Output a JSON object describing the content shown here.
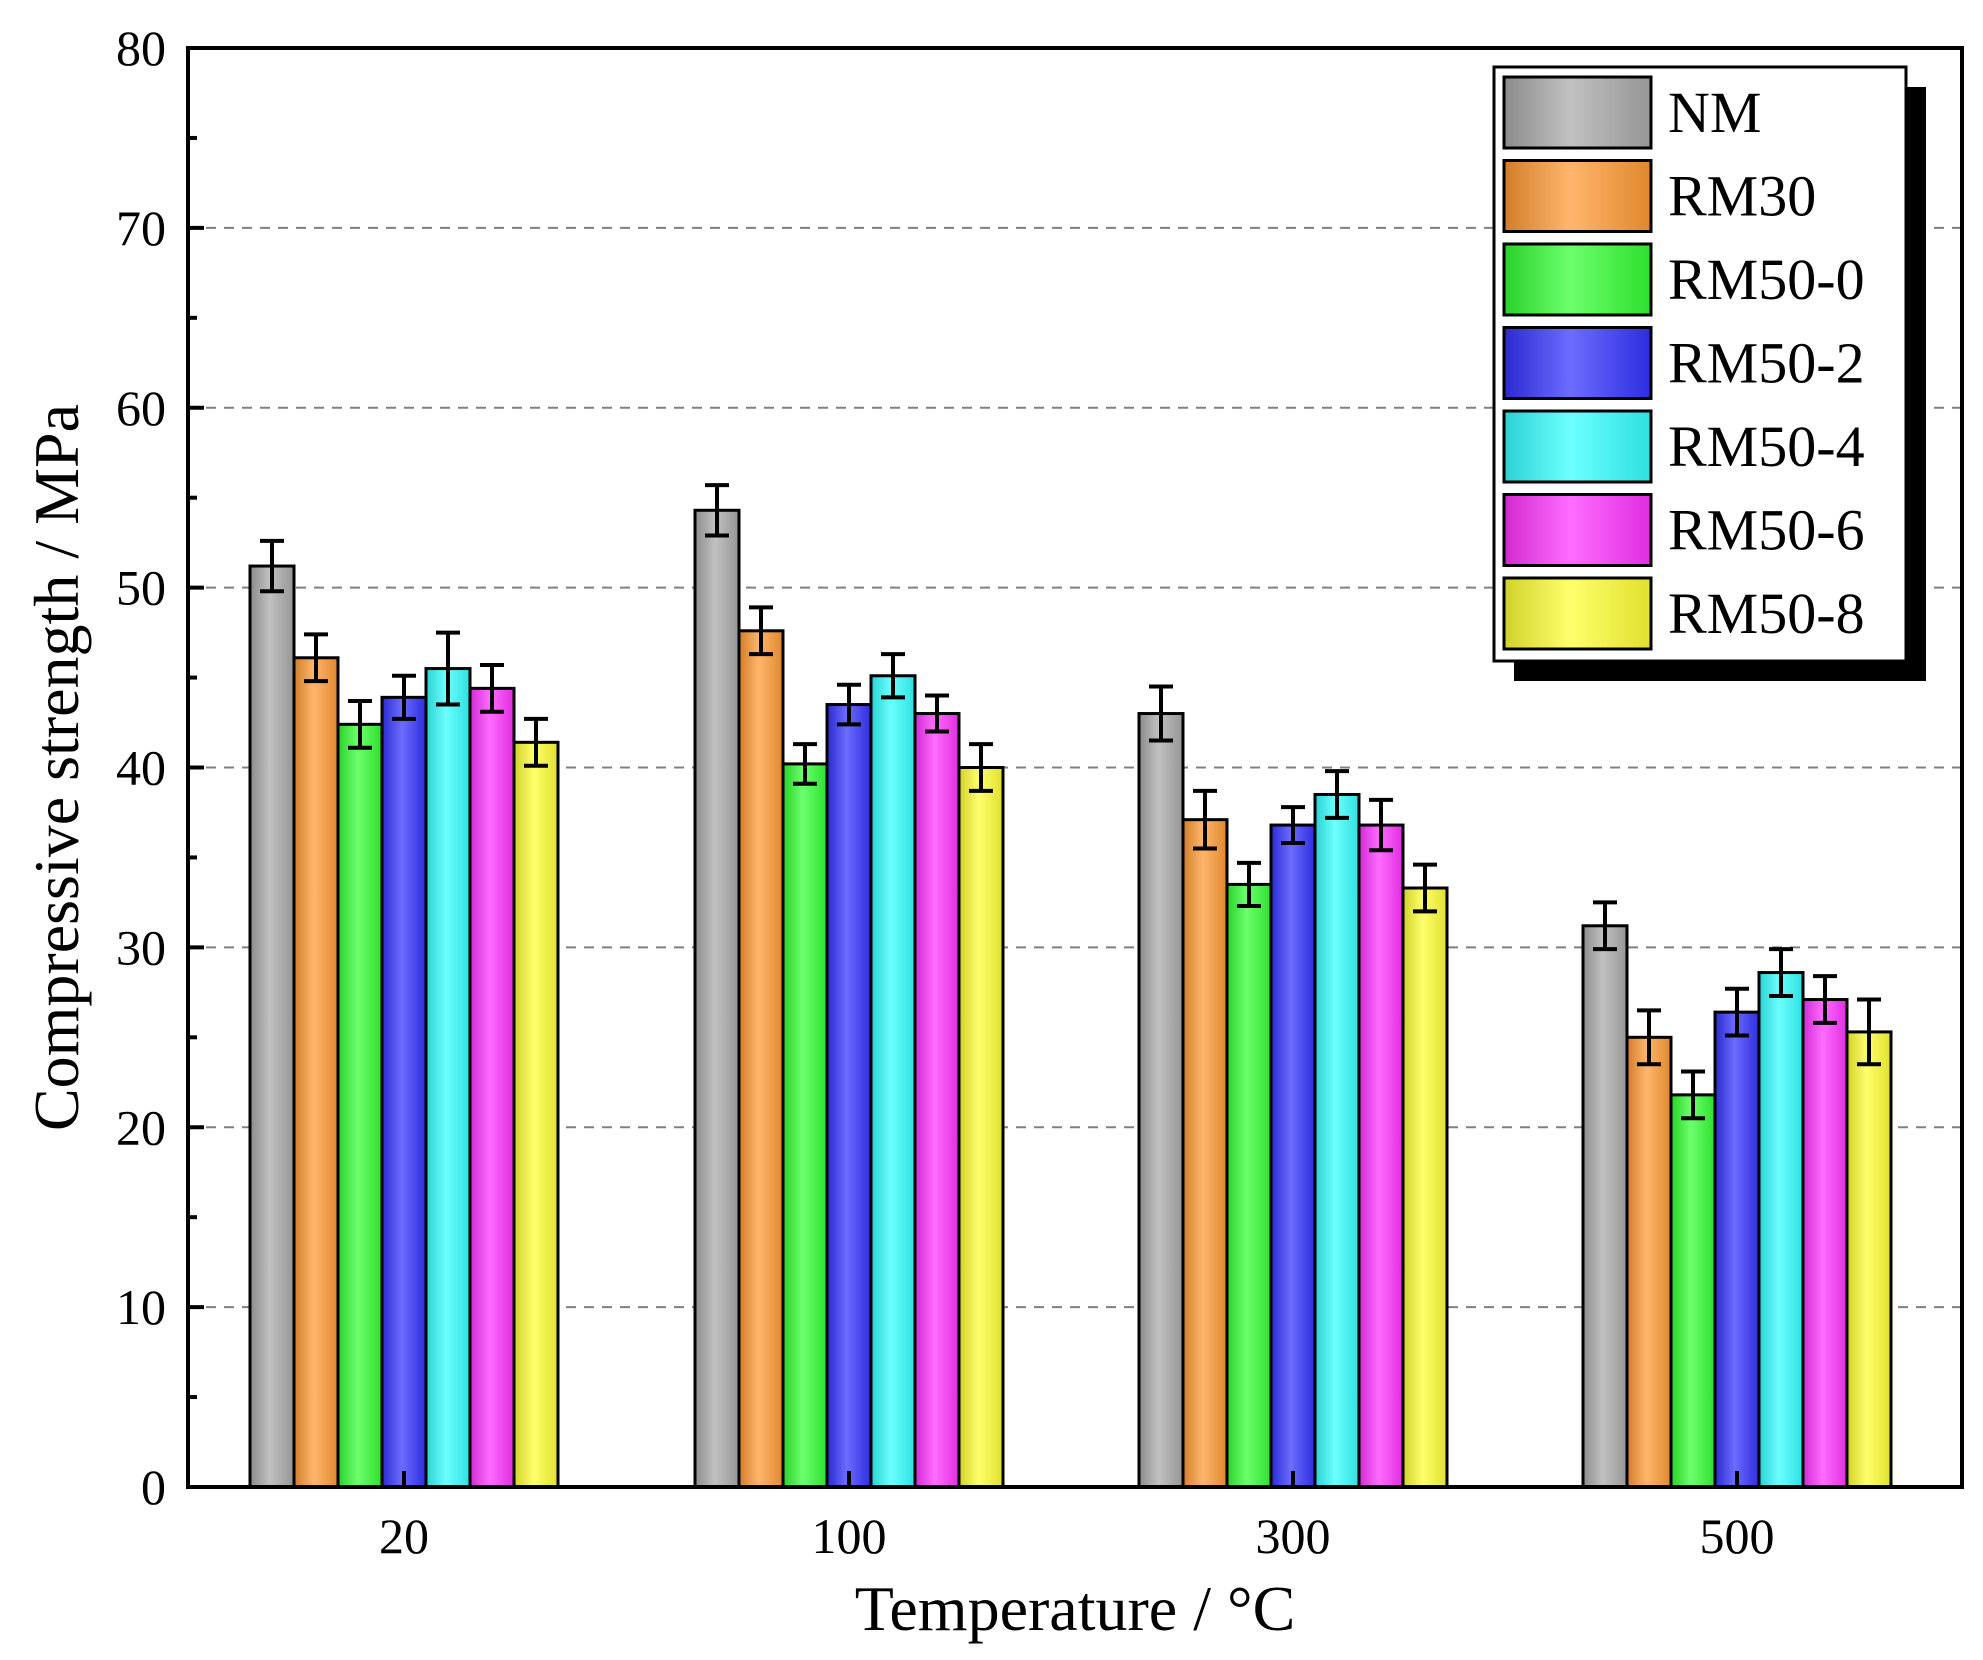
{
  "chart_data": {
    "type": "bar",
    "xlabel": "Temperature / °C",
    "ylabel": "Compressive strength / MPa",
    "ylim": [
      0,
      80
    ],
    "yticks": [
      0,
      10,
      20,
      30,
      40,
      50,
      60,
      70,
      80
    ],
    "categories": [
      "20",
      "100",
      "300",
      "500"
    ],
    "grid": "horizontal dashed",
    "legend_position": "top-right",
    "series": [
      {
        "name": "NM",
        "color": "#a9a9a9",
        "values": [
          51.2,
          54.3,
          43.0,
          31.2
        ],
        "errors": [
          1.4,
          1.4,
          1.5,
          1.3
        ]
      },
      {
        "name": "RM30",
        "color": "#ff9933",
        "values": [
          46.1,
          47.6,
          37.1,
          25.0
        ],
        "errors": [
          1.3,
          1.3,
          1.6,
          1.5
        ]
      },
      {
        "name": "RM50-0",
        "color": "#33ff33",
        "values": [
          42.4,
          40.2,
          33.5,
          21.8
        ],
        "errors": [
          1.3,
          1.1,
          1.2,
          1.3
        ]
      },
      {
        "name": "RM50-2",
        "color": "#3333ff",
        "values": [
          43.9,
          43.5,
          36.8,
          26.4
        ],
        "errors": [
          1.2,
          1.1,
          1.0,
          1.3
        ]
      },
      {
        "name": "RM50-4",
        "color": "#33ffff",
        "values": [
          45.5,
          45.1,
          38.5,
          28.6
        ],
        "errors": [
          2.0,
          1.2,
          1.3,
          1.3
        ]
      },
      {
        "name": "RM50-6",
        "color": "#ff33ff",
        "values": [
          44.4,
          43.0,
          36.8,
          27.1
        ],
        "errors": [
          1.3,
          1.0,
          1.4,
          1.3
        ]
      },
      {
        "name": "RM50-8",
        "color": "#ffff33",
        "values": [
          41.4,
          40.0,
          33.3,
          25.3
        ],
        "errors": [
          1.3,
          1.3,
          1.3,
          1.8
        ]
      }
    ]
  }
}
